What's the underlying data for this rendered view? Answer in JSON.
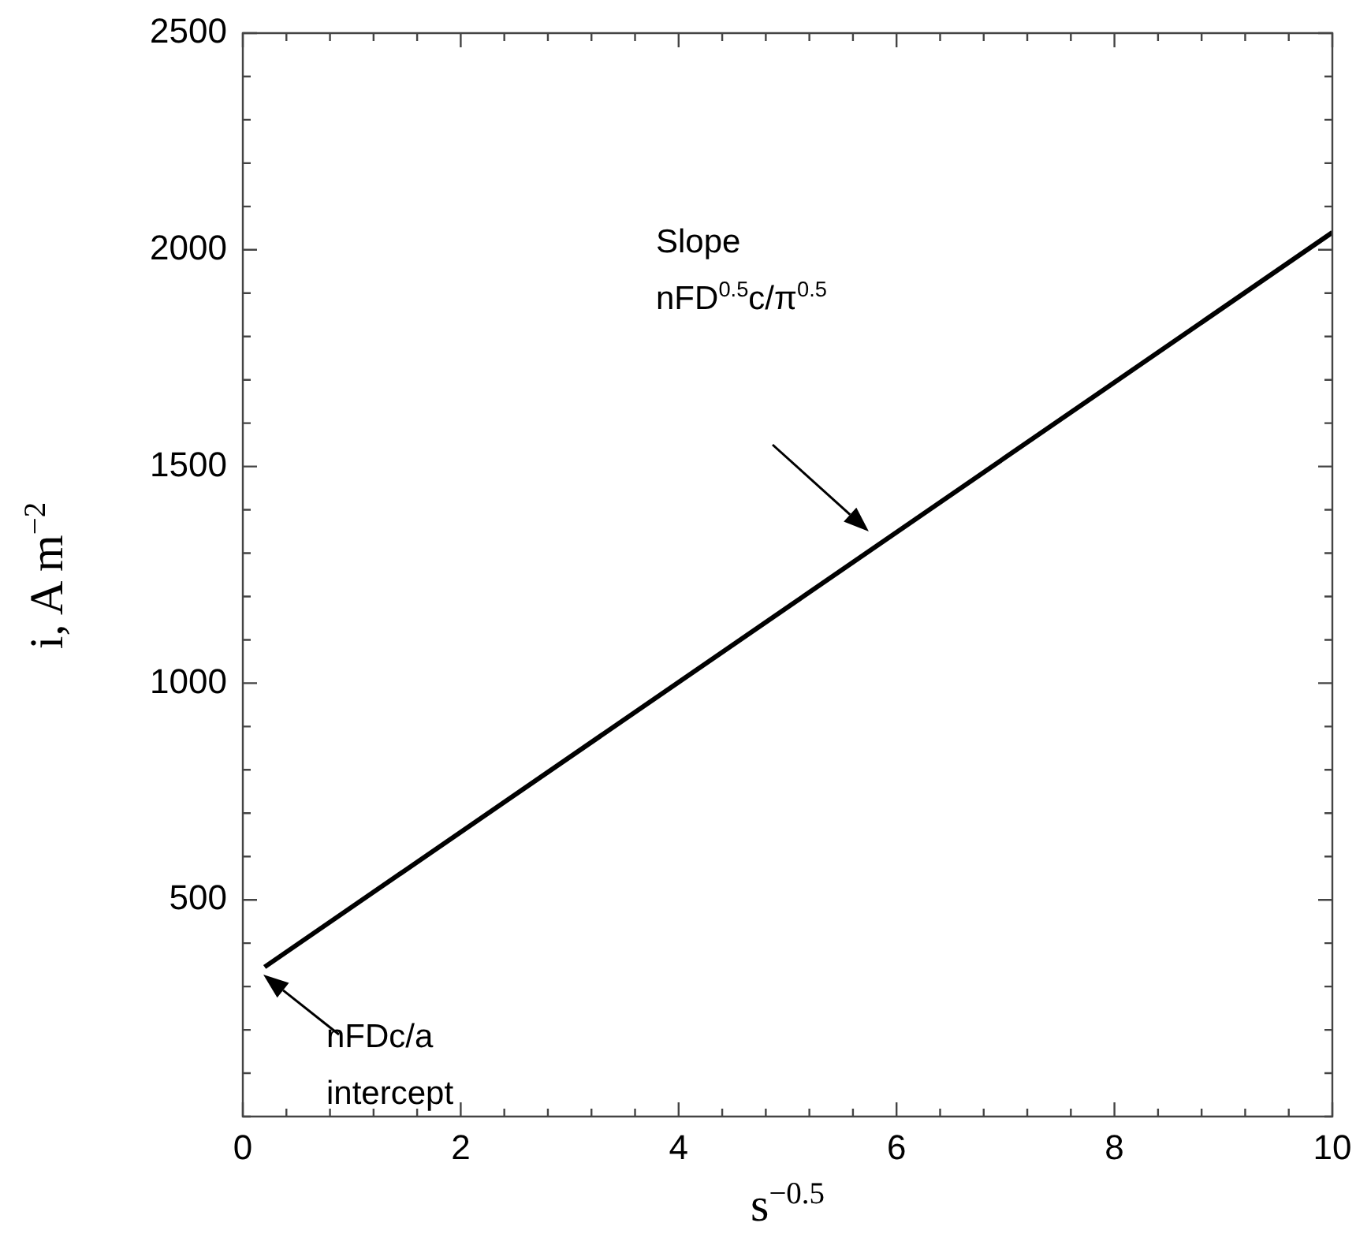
{
  "chart_data": {
    "type": "line",
    "xlabel": "s$^{−0.5}$",
    "ylabel": "i, A m$^{−2}$",
    "x": [
      0.2,
      10
    ],
    "series": [
      {
        "color": "#000000",
        "values": [
          345,
          2040
        ]
      }
    ],
    "xlim": [
      0,
      10
    ],
    "xticks": [
      0,
      {
        "value": 0.4,
        "label": null
      },
      {
        "value": 0.8,
        "label": null
      },
      {
        "value": 1.2,
        "label": null
      },
      {
        "value": 1.6,
        "label": null
      },
      2,
      {
        "value": 2.4,
        "label": null
      },
      {
        "value": 2.8,
        "label": null
      },
      {
        "value": 3.2,
        "label": null
      },
      {
        "value": 3.6,
        "label": null
      },
      4,
      {
        "value": 4.4,
        "label": null
      },
      {
        "value": 4.8,
        "label": null
      },
      {
        "value": 5.2,
        "label": null
      },
      {
        "value": 5.6,
        "label": null
      },
      6,
      {
        "value": 6.4,
        "label": null
      },
      {
        "value": 6.8,
        "label": null
      },
      {
        "value": 7.2,
        "label": null
      },
      {
        "value": 7.6,
        "label": null
      },
      8,
      {
        "value": 8.4,
        "label": null
      },
      {
        "value": 8.8,
        "label": null
      },
      {
        "value": 9.2,
        "label": null
      },
      {
        "value": 9.6,
        "label": null
      },
      10
    ],
    "ylim": [
      0,
      2500
    ],
    "yticks": [
      {
        "value": 0,
        "label": null
      },
      {
        "value": 100,
        "label": null
      },
      {
        "value": 200,
        "label": null
      },
      {
        "value": 300,
        "label": null
      },
      {
        "value": 400,
        "label": null
      },
      500,
      {
        "value": 600,
        "label": null
      },
      {
        "value": 700,
        "label": null
      },
      {
        "value": 800,
        "label": null
      },
      {
        "value": 900,
        "label": null
      },
      1000,
      {
        "value": 1100,
        "label": null
      },
      {
        "value": 1200,
        "label": null
      },
      {
        "value": 1300,
        "label": null
      },
      {
        "value": 1400,
        "label": null
      },
      1500,
      {
        "value": 1600,
        "label": null
      },
      {
        "value": 1700,
        "label": null
      },
      {
        "value": 1800,
        "label": null
      },
      {
        "value": 1900,
        "label": null
      },
      2000,
      {
        "value": 2100,
        "label": null
      },
      {
        "value": 2200,
        "label": null
      },
      {
        "value": 2300,
        "label": null
      },
      {
        "value": 2400,
        "label": null
      },
      2500
    ],
    "annotations": [
      "Slope\nnFD$^{0.5}$c/π$^{0.5}$",
      "nFDc/a\nintercept"
    ],
    "grid": false,
    "legend": false,
    "marker": "none",
    "line_style": "solid"
  }
}
